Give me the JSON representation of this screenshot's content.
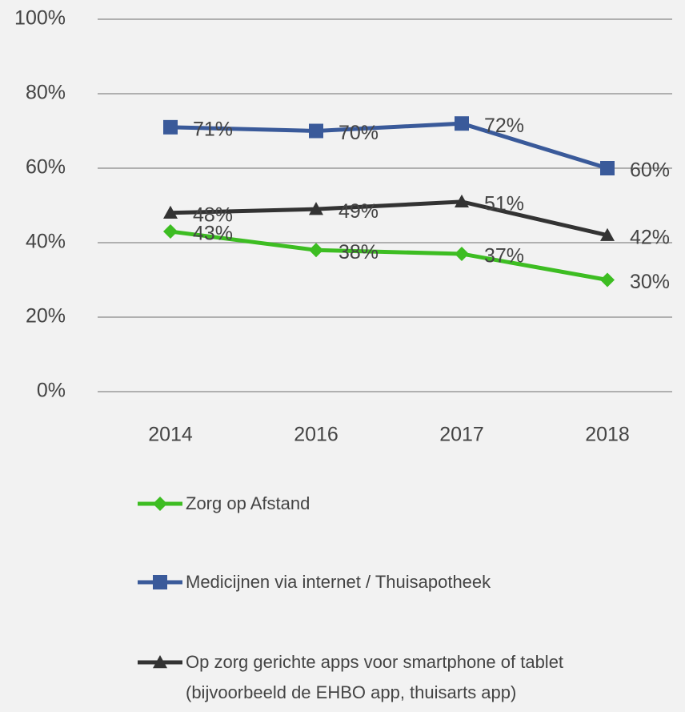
{
  "chart_data": {
    "type": "line",
    "categories": [
      "2014",
      "2016",
      "2017",
      "2018"
    ],
    "series": [
      {
        "name": "Zorg op Afstand",
        "color": "#3dbd22",
        "marker": "diamond",
        "values": [
          43,
          38,
          37,
          30
        ],
        "value_labels": [
          "43%",
          "38%",
          "37%",
          "30%"
        ]
      },
      {
        "name": "Medicijnen via internet / Thuisapotheek",
        "color": "#3a5a9a",
        "marker": "square",
        "values": [
          71,
          70,
          72,
          60
        ],
        "value_labels": [
          "71%",
          "70%",
          "72%",
          "60%"
        ]
      },
      {
        "name": "Op zorg gerichte apps voor smartphone of tablet (bijvoorbeeld de EHBO app, thuisarts app)",
        "color": "#333333",
        "marker": "triangle",
        "values": [
          48,
          49,
          51,
          42
        ],
        "value_labels": [
          "48%",
          "49%",
          "51%",
          "42%"
        ]
      }
    ],
    "ylim": [
      0,
      100
    ],
    "yticks": [
      {
        "value": 0,
        "label": "0%"
      },
      {
        "value": 20,
        "label": "20%"
      },
      {
        "value": 40,
        "label": "40%"
      },
      {
        "value": 60,
        "label": "60%"
      },
      {
        "value": 80,
        "label": "80%"
      },
      {
        "value": 100,
        "label": "100%"
      }
    ],
    "grid": true,
    "legend": "bottom"
  }
}
